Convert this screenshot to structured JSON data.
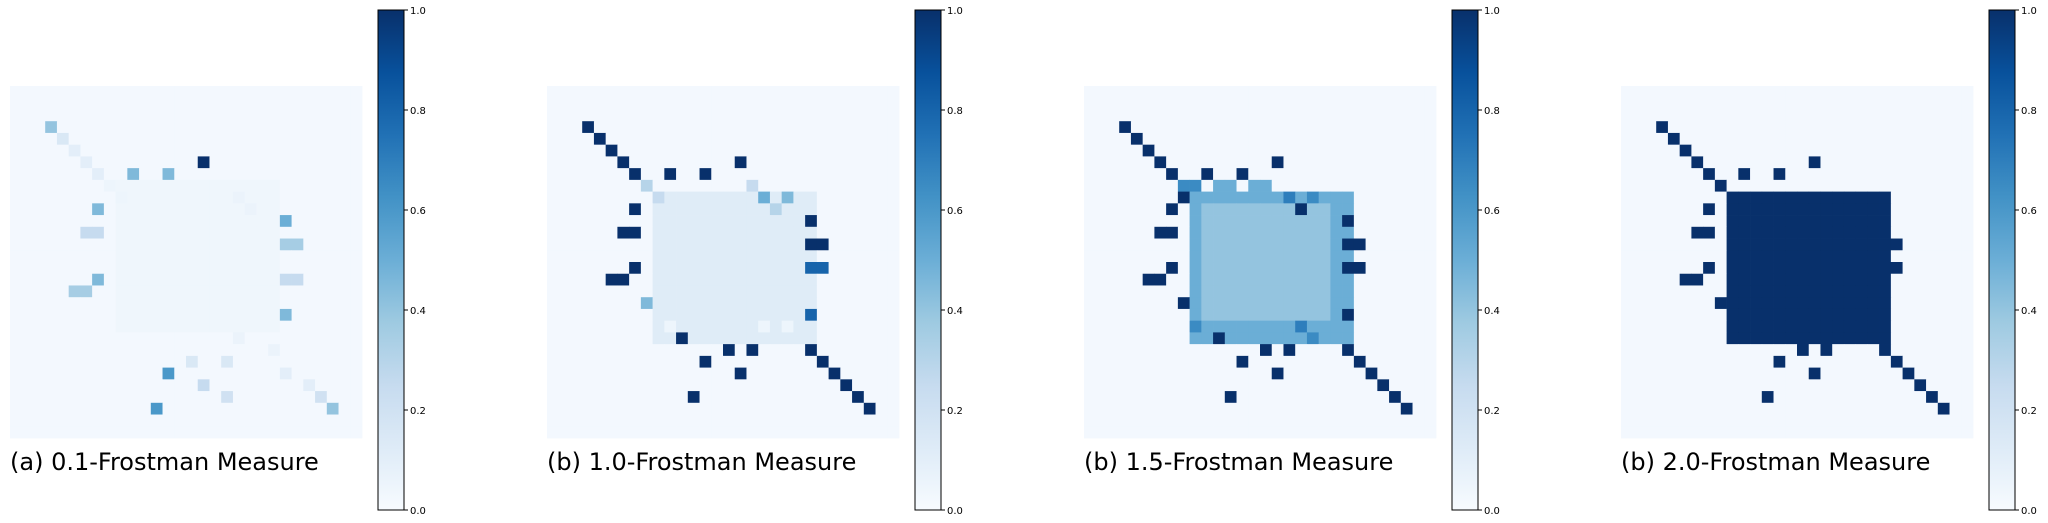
{
  "figure": {
    "panels": [
      {
        "caption": "(a) 0.1-Frostman Measure"
      },
      {
        "caption": "(b) 1.0-Frostman Measure"
      },
      {
        "caption": "(b) 1.5-Frostman Measure"
      },
      {
        "caption": "(b) 2.0-Frostman Measure"
      }
    ],
    "colorbar": {
      "colormap": "Blues",
      "min": 0.0,
      "max": 1.0,
      "ticks": [
        "0.0",
        "0.2",
        "0.4",
        "0.6",
        "0.8",
        "1.0"
      ]
    }
  },
  "chart_data": [
    {
      "type": "heatmap",
      "title": "(a) 0.1-Frostman Measure",
      "grid_size": [
        30,
        30
      ],
      "colormap": "Blues",
      "vmin": 0.0,
      "vmax": 1.0,
      "background_value": 0.02,
      "regions": [
        {
          "rows": [
            8,
            20
          ],
          "cols": [
            9,
            22
          ],
          "value": 0.04
        }
      ],
      "cells": [
        [
          3,
          3,
          0.4
        ],
        [
          4,
          4,
          0.15
        ],
        [
          5,
          5,
          0.1
        ],
        [
          6,
          6,
          0.1
        ],
        [
          7,
          7,
          0.1
        ],
        [
          6,
          16,
          1.0
        ],
        [
          7,
          10,
          0.45
        ],
        [
          7,
          13,
          0.45
        ],
        [
          8,
          8,
          0.05
        ],
        [
          9,
          9,
          0.05
        ],
        [
          9,
          19,
          0.06
        ],
        [
          10,
          20,
          0.06
        ],
        [
          10,
          7,
          0.45
        ],
        [
          11,
          23,
          0.5
        ],
        [
          12,
          6,
          0.25
        ],
        [
          12,
          7,
          0.25
        ],
        [
          13,
          23,
          0.35
        ],
        [
          13,
          24,
          0.35
        ],
        [
          16,
          7,
          0.45
        ],
        [
          17,
          5,
          0.35
        ],
        [
          17,
          6,
          0.35
        ],
        [
          16,
          23,
          0.25
        ],
        [
          16,
          24,
          0.25
        ],
        [
          19,
          23,
          0.45
        ],
        [
          21,
          19,
          0.06
        ],
        [
          22,
          22,
          0.06
        ],
        [
          23,
          15,
          0.15
        ],
        [
          23,
          18,
          0.15
        ],
        [
          24,
          13,
          0.6
        ],
        [
          24,
          23,
          0.1
        ],
        [
          25,
          16,
          0.25
        ],
        [
          25,
          25,
          0.1
        ],
        [
          26,
          18,
          0.2
        ],
        [
          26,
          26,
          0.2
        ],
        [
          27,
          12,
          0.6
        ],
        [
          27,
          27,
          0.4
        ]
      ]
    },
    {
      "type": "heatmap",
      "title": "(b) 1.0-Frostman Measure",
      "grid_size": [
        30,
        30
      ],
      "colormap": "Blues",
      "vmin": 0.0,
      "vmax": 1.0,
      "background_value": 0.02,
      "regions": [
        {
          "rows": [
            9,
            21
          ],
          "cols": [
            9,
            22
          ],
          "value": 0.12
        }
      ],
      "cells": [
        [
          3,
          3,
          1.0
        ],
        [
          4,
          4,
          1.0
        ],
        [
          5,
          5,
          1.0
        ],
        [
          6,
          6,
          1.0
        ],
        [
          7,
          7,
          1.0
        ],
        [
          6,
          16,
          1.0
        ],
        [
          7,
          10,
          1.0
        ],
        [
          7,
          13,
          1.0
        ],
        [
          8,
          8,
          0.3
        ],
        [
          8,
          17,
          0.25
        ],
        [
          9,
          9,
          0.25
        ],
        [
          9,
          18,
          0.5
        ],
        [
          9,
          20,
          0.45
        ],
        [
          10,
          7,
          1.0
        ],
        [
          10,
          19,
          0.3
        ],
        [
          11,
          22,
          1.0
        ],
        [
          12,
          6,
          1.0
        ],
        [
          12,
          7,
          1.0
        ],
        [
          13,
          22,
          1.0
        ],
        [
          13,
          23,
          1.0
        ],
        [
          15,
          7,
          1.0
        ],
        [
          15,
          22,
          0.8
        ],
        [
          15,
          23,
          0.8
        ],
        [
          16,
          5,
          1.0
        ],
        [
          16,
          6,
          1.0
        ],
        [
          18,
          8,
          0.45
        ],
        [
          19,
          22,
          0.8
        ],
        [
          20,
          10,
          0.05
        ],
        [
          20,
          18,
          0.05
        ],
        [
          20,
          20,
          0.05
        ],
        [
          21,
          11,
          1.0
        ],
        [
          22,
          15,
          1.0
        ],
        [
          22,
          17,
          1.0
        ],
        [
          22,
          22,
          1.0
        ],
        [
          23,
          13,
          1.0
        ],
        [
          23,
          23,
          1.0
        ],
        [
          24,
          16,
          1.0
        ],
        [
          24,
          24,
          1.0
        ],
        [
          25,
          25,
          1.0
        ],
        [
          26,
          26,
          1.0
        ],
        [
          26,
          12,
          1.0
        ],
        [
          27,
          27,
          1.0
        ]
      ]
    },
    {
      "type": "heatmap",
      "title": "(b) 1.5-Frostman Measure",
      "grid_size": [
        30,
        30
      ],
      "colormap": "Blues",
      "vmin": 0.0,
      "vmax": 1.0,
      "background_value": 0.02,
      "regions": [
        {
          "rows": [
            9,
            21
          ],
          "cols": [
            9,
            22
          ],
          "value": 0.5
        },
        {
          "rows": [
            10,
            19
          ],
          "cols": [
            10,
            20
          ],
          "value": 0.4
        }
      ],
      "cells": [
        [
          3,
          3,
          1.0
        ],
        [
          4,
          4,
          1.0
        ],
        [
          5,
          5,
          1.0
        ],
        [
          6,
          6,
          1.0
        ],
        [
          7,
          7,
          1.0
        ],
        [
          6,
          16,
          1.0
        ],
        [
          7,
          10,
          1.0
        ],
        [
          7,
          13,
          1.0
        ],
        [
          8,
          8,
          0.65
        ],
        [
          8,
          9,
          0.65
        ],
        [
          8,
          11,
          0.5
        ],
        [
          8,
          12,
          0.5
        ],
        [
          8,
          14,
          0.5
        ],
        [
          8,
          15,
          0.5
        ],
        [
          9,
          8,
          1.0
        ],
        [
          9,
          17,
          0.7
        ],
        [
          9,
          19,
          0.65
        ],
        [
          10,
          18,
          1.0
        ],
        [
          10,
          7,
          1.0
        ],
        [
          11,
          22,
          1.0
        ],
        [
          12,
          6,
          1.0
        ],
        [
          12,
          7,
          1.0
        ],
        [
          13,
          22,
          1.0
        ],
        [
          13,
          23,
          1.0
        ],
        [
          15,
          7,
          1.0
        ],
        [
          15,
          22,
          1.0
        ],
        [
          15,
          23,
          1.0
        ],
        [
          16,
          5,
          1.0
        ],
        [
          16,
          6,
          1.0
        ],
        [
          18,
          8,
          1.0
        ],
        [
          19,
          22,
          1.0
        ],
        [
          20,
          9,
          0.65
        ],
        [
          20,
          18,
          0.7
        ],
        [
          21,
          11,
          1.0
        ],
        [
          21,
          19,
          0.65
        ],
        [
          22,
          15,
          1.0
        ],
        [
          22,
          17,
          1.0
        ],
        [
          22,
          22,
          1.0
        ],
        [
          23,
          13,
          1.0
        ],
        [
          23,
          23,
          1.0
        ],
        [
          24,
          16,
          1.0
        ],
        [
          24,
          24,
          1.0
        ],
        [
          25,
          25,
          1.0
        ],
        [
          26,
          26,
          1.0
        ],
        [
          26,
          12,
          1.0
        ],
        [
          27,
          27,
          1.0
        ]
      ]
    },
    {
      "type": "heatmap",
      "title": "(b) 2.0-Frostman Measure",
      "grid_size": [
        30,
        30
      ],
      "colormap": "Blues",
      "vmin": 0.0,
      "vmax": 1.0,
      "background_value": 0.02,
      "regions": [
        {
          "rows": [
            9,
            21
          ],
          "cols": [
            9,
            22
          ],
          "value": 1.0
        }
      ],
      "cells": [
        [
          3,
          3,
          1.0
        ],
        [
          4,
          4,
          1.0
        ],
        [
          5,
          5,
          1.0
        ],
        [
          6,
          6,
          1.0
        ],
        [
          7,
          7,
          1.0
        ],
        [
          6,
          16,
          1.0
        ],
        [
          7,
          10,
          1.0
        ],
        [
          7,
          13,
          1.0
        ],
        [
          8,
          8,
          1.0
        ],
        [
          9,
          19,
          1.0
        ],
        [
          10,
          20,
          1.0
        ],
        [
          10,
          7,
          1.0
        ],
        [
          11,
          22,
          1.0
        ],
        [
          12,
          6,
          1.0
        ],
        [
          12,
          7,
          1.0
        ],
        [
          13,
          22,
          1.0
        ],
        [
          13,
          23,
          1.0
        ],
        [
          15,
          7,
          1.0
        ],
        [
          15,
          22,
          1.0
        ],
        [
          15,
          23,
          1.0
        ],
        [
          16,
          5,
          1.0
        ],
        [
          16,
          6,
          1.0
        ],
        [
          18,
          8,
          1.0
        ],
        [
          19,
          22,
          1.0
        ],
        [
          21,
          11,
          1.0
        ],
        [
          21,
          19,
          1.0
        ],
        [
          22,
          15,
          1.0
        ],
        [
          22,
          17,
          1.0
        ],
        [
          22,
          22,
          1.0
        ],
        [
          23,
          13,
          1.0
        ],
        [
          23,
          23,
          1.0
        ],
        [
          24,
          16,
          1.0
        ],
        [
          24,
          24,
          1.0
        ],
        [
          25,
          25,
          1.0
        ],
        [
          26,
          26,
          1.0
        ],
        [
          26,
          12,
          1.0
        ],
        [
          27,
          27,
          1.0
        ]
      ]
    }
  ]
}
